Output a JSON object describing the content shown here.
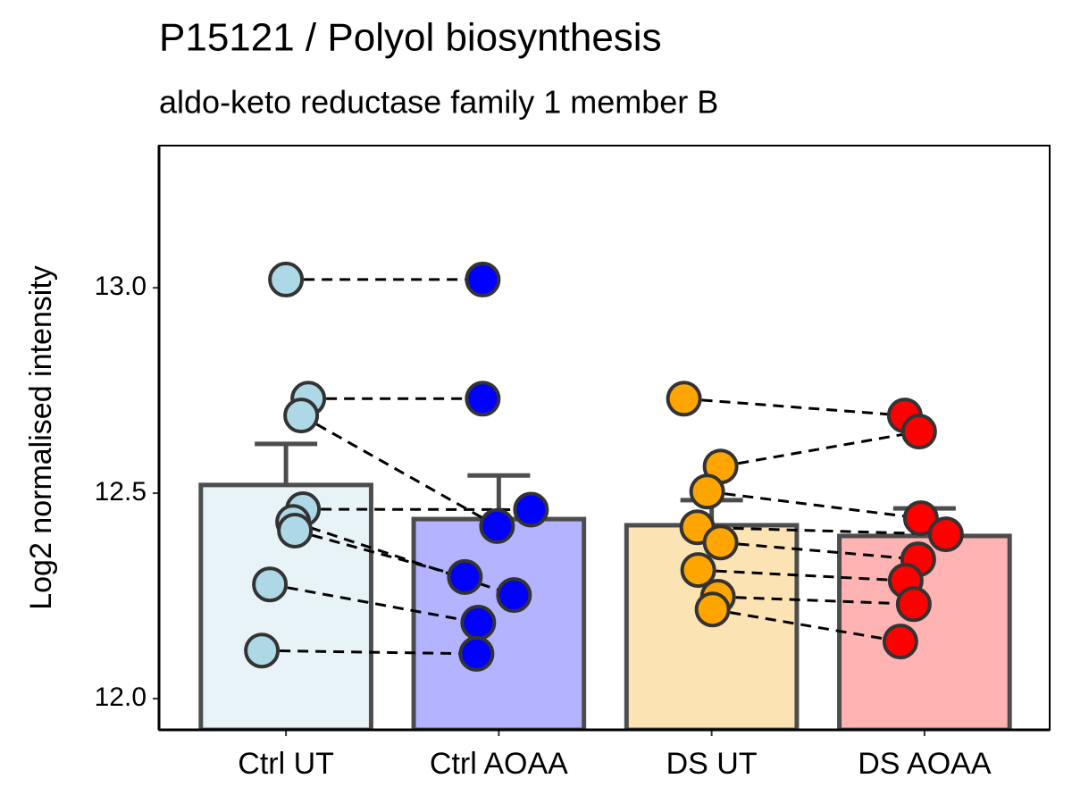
{
  "chart_data": {
    "type": "bar",
    "title": "P15121 / Polyol biosynthesis",
    "subtitle": "aldo-keto reductase family 1 member B",
    "y_label": "Log2 normalised intensity",
    "categories": [
      "Ctrl UT",
      "Ctrl AOAA",
      "DS UT",
      "DS AOAA"
    ],
    "values": [
      12.52,
      12.437,
      12.422,
      12.396
    ],
    "errors": [
      0.1,
      0.106,
      0.061,
      0.067
    ],
    "colors": [
      "#e8f3f8",
      "#b3b3ff",
      "#fce3b3",
      "#ffb3b3"
    ],
    "point_colors": [
      "#add8e6",
      "#0000ff",
      "#ffa500",
      "#ff0000"
    ],
    "points": [
      [
        13.02,
        12.73,
        12.689,
        12.461,
        12.43,
        12.409,
        12.278,
        12.117
      ],
      [
        13.02,
        12.73,
        12.42,
        12.46,
        12.252,
        12.296,
        12.185,
        12.109
      ],
      [
        12.73,
        12.565,
        12.504,
        12.417,
        12.38,
        12.313,
        12.248,
        12.217
      ],
      [
        12.689,
        12.65,
        12.439,
        12.4,
        12.339,
        12.287,
        12.23,
        12.139
      ]
    ],
    "ylim": [
      11.924,
      13.346
    ],
    "yticks": [
      {
        "value": 12,
        "label": "12.0"
      },
      12.5,
      {
        "value": 13,
        "label": "13.0"
      }
    ]
  }
}
